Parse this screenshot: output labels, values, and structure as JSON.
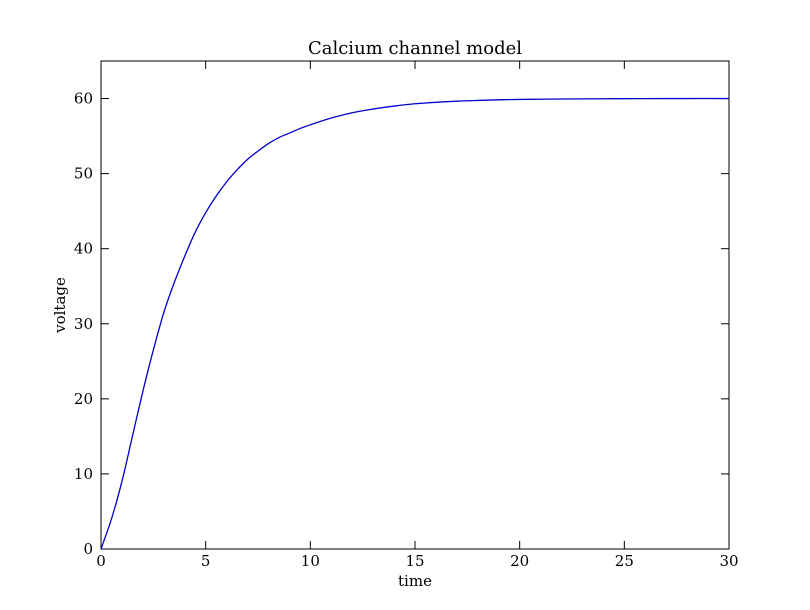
{
  "chart_data": {
    "type": "line",
    "title": "Calcium channel model",
    "xlabel": "time",
    "ylabel": "voltage",
    "xlim": [
      0,
      30
    ],
    "ylim": [
      0,
      65
    ],
    "xticks": [
      0,
      5,
      10,
      15,
      20,
      25,
      30
    ],
    "yticks": [
      0,
      10,
      20,
      30,
      40,
      50,
      60
    ],
    "xtick_labels": [
      "0",
      "5",
      "10",
      "15",
      "20",
      "25",
      "30"
    ],
    "ytick_labels": [
      "0",
      "10",
      "20",
      "30",
      "40",
      "50",
      "60"
    ],
    "grid": false,
    "series": [
      {
        "color": "#0000cc",
        "x": [
          0,
          0.5,
          1,
          1.5,
          2,
          2.5,
          3,
          3.5,
          4,
          4.5,
          5,
          5.5,
          6,
          6.5,
          7,
          7.5,
          8,
          8.5,
          9,
          9.5,
          10,
          11,
          12,
          13,
          14,
          15,
          16,
          17,
          18,
          19,
          20,
          22,
          24,
          26,
          28,
          30
        ],
        "y": [
          0,
          4,
          9,
          15,
          21,
          26.5,
          31.5,
          35.5,
          39,
          42.2,
          44.8,
          47,
          48.9,
          50.5,
          51.9,
          53,
          54,
          54.8,
          55.4,
          56,
          56.5,
          57.4,
          58.1,
          58.6,
          59,
          59.3,
          59.5,
          59.65,
          59.75,
          59.83,
          59.88,
          59.94,
          59.97,
          59.99,
          60,
          60
        ]
      }
    ]
  }
}
